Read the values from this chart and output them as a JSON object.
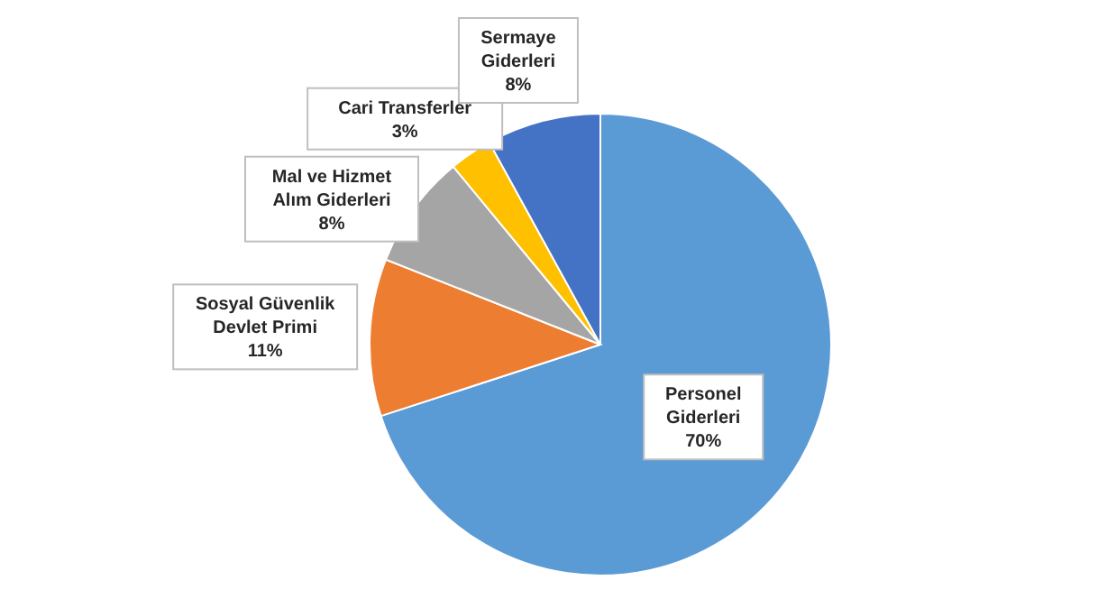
{
  "chart_data": {
    "type": "pie",
    "categories": [
      "Personel Giderleri",
      "Sosyal Güvenlik Devlet Primi",
      "Mal ve Hizmet Alım Giderleri",
      "Cari Transferler",
      "Sermaye Giderleri"
    ],
    "values": [
      70,
      11,
      8,
      3,
      8
    ],
    "value_labels": [
      "70%",
      "11%",
      "8%",
      "3%",
      "8%"
    ],
    "colors": [
      "#5b9bd5",
      "#ed7d31",
      "#a5a5a5",
      "#ffc000",
      "#4472c4"
    ],
    "legend": false
  }
}
